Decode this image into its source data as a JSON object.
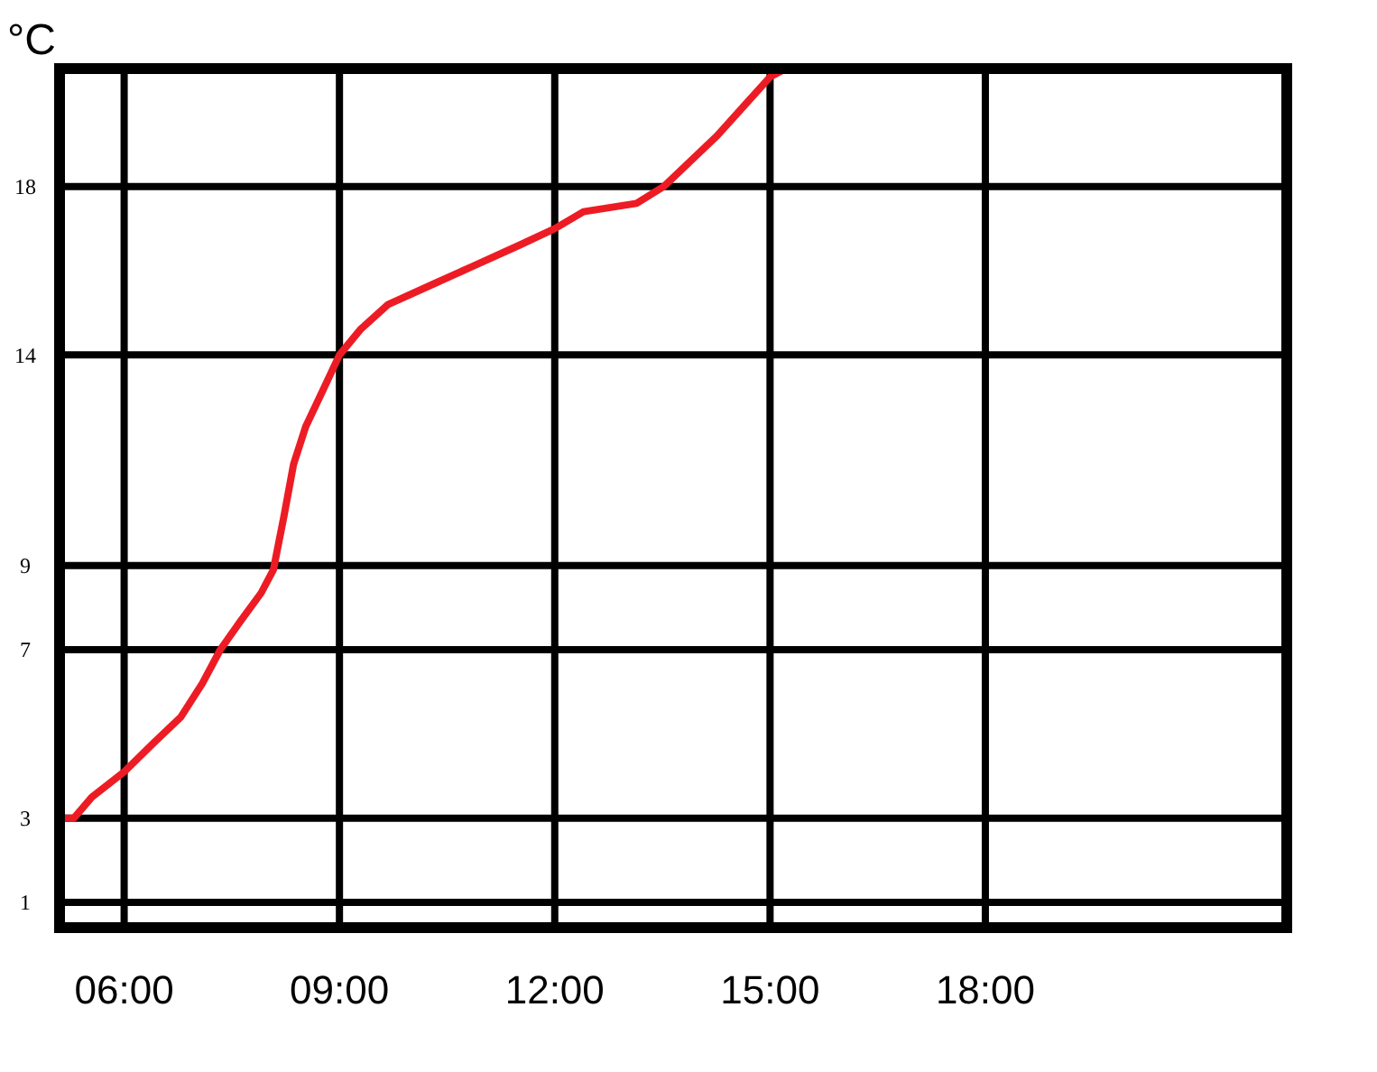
{
  "chart_data": {
    "type": "line",
    "ylabel": "°C",
    "xlim": [
      5.1,
      22.2
    ],
    "ylim": [
      0.4,
      20.8
    ],
    "xticks": [
      {
        "value": 6,
        "label": "06:00"
      },
      {
        "value": 9,
        "label": "09:00"
      },
      {
        "value": 12,
        "label": "12:00"
      },
      {
        "value": 15,
        "label": "15:00"
      },
      {
        "value": 18,
        "label": "18:00"
      }
    ],
    "yticks": [
      1,
      3,
      7,
      9,
      14,
      18
    ],
    "grid": true,
    "marker": "none",
    "line_style": "solid",
    "series": [
      {
        "color": "#ed1c24",
        "x": [
          5.13,
          5.3,
          5.55,
          6.0,
          6.42,
          6.79,
          7.09,
          7.34,
          7.61,
          7.91,
          8.08,
          8.23,
          8.36,
          8.53,
          8.78,
          9.0,
          9.29,
          9.68,
          10.33,
          10.85,
          11.5,
          12.0,
          12.4,
          13.14,
          13.52,
          13.89,
          14.26,
          14.63,
          15.0,
          15.22
        ],
        "values": [
          3,
          3,
          3.5,
          4.1,
          4.8,
          5.4,
          6.2,
          7.0,
          7.65,
          8.35,
          8.9,
          10.2,
          11.4,
          12.3,
          13.2,
          14,
          14.6,
          15.2,
          15.7,
          16.1,
          16.6,
          17.0,
          17.4,
          17.6,
          18.0,
          18.6,
          19.2,
          19.9,
          20.6,
          20.8
        ]
      }
    ]
  }
}
